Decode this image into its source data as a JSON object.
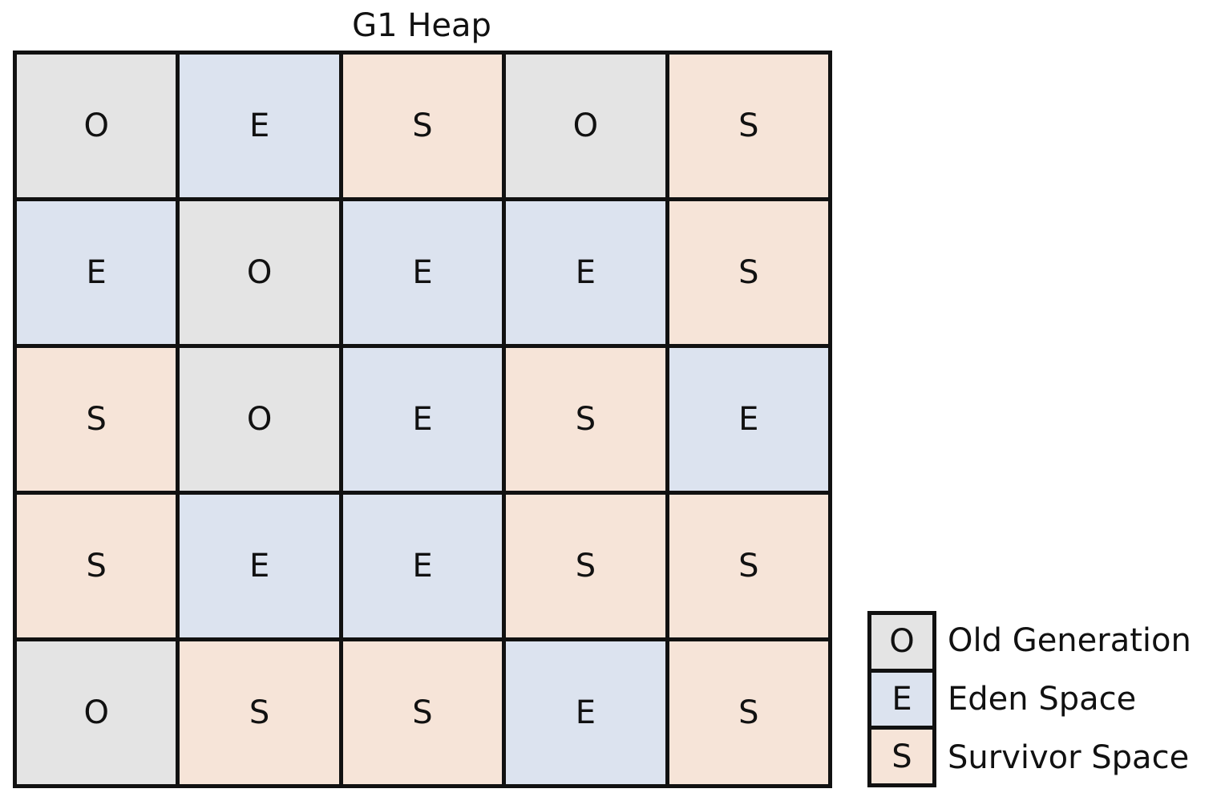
{
  "title": "G1 Heap",
  "grid": {
    "rows": [
      [
        "O",
        "E",
        "S",
        "O",
        "S"
      ],
      [
        "E",
        "O",
        "E",
        "E",
        "S"
      ],
      [
        "S",
        "O",
        "E",
        "S",
        "E"
      ],
      [
        "S",
        "E",
        "E",
        "S",
        "S"
      ],
      [
        "O",
        "S",
        "S",
        "E",
        "S"
      ]
    ]
  },
  "legend": {
    "items": [
      {
        "code": "O",
        "label": "Old Generation",
        "color": "#e4e4e4"
      },
      {
        "code": "E",
        "label": "Eden Space",
        "color": "#dce3ef"
      },
      {
        "code": "S",
        "label": "Survivor Space",
        "color": "#f6e4d8"
      }
    ]
  },
  "colors": {
    "border": "#111111",
    "old": "#e4e4e4",
    "eden": "#dce3ef",
    "survivor": "#f6e4d8"
  }
}
